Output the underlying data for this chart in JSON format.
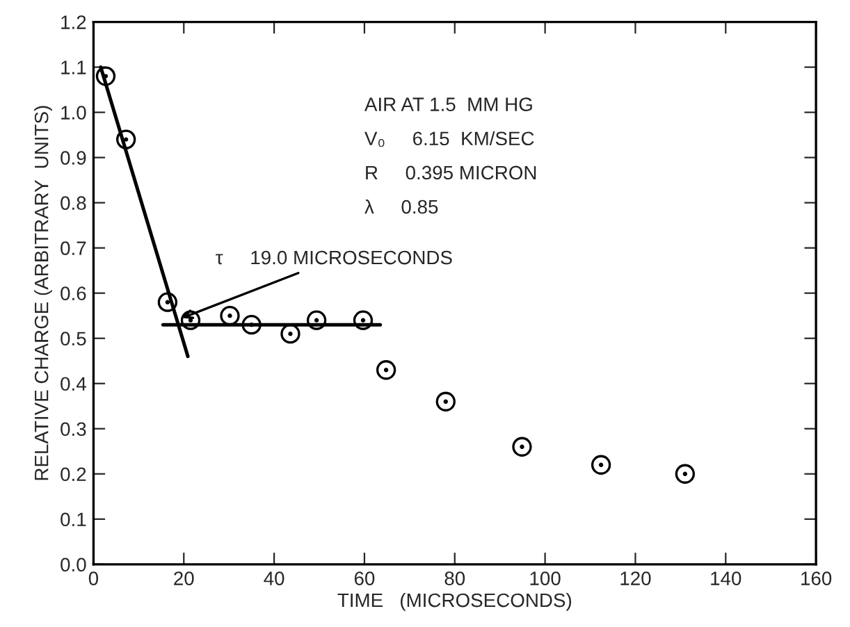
{
  "chart_data": {
    "type": "scatter",
    "xlabel": "TIME   (MICROSECONDS)",
    "ylabel": "RELATIVE CHARGE (ARBITRARY  UNITS)",
    "series": [
      {
        "color": "#000000",
        "marker": "circle",
        "x": [
          2.7,
          7.2,
          16.4,
          21.5,
          30.2,
          35,
          43.6,
          49.4,
          59.7,
          64.8,
          78,
          94.9,
          112.4,
          131
        ],
        "values": [
          1.08,
          0.94,
          0.58,
          0.54,
          0.55,
          0.53,
          0.51,
          0.54,
          0.54,
          0.43,
          0.36,
          0.26,
          0.22,
          0.2
        ]
      },
      {
        "type": "line",
        "marker": "none",
        "color": "#000000",
        "x": [
          1.6,
          20.9
        ],
        "values": [
          1.1,
          0.46
        ]
      },
      {
        "type": "line",
        "marker": "none",
        "color": "#000000",
        "x": [
          15.4,
          63.5
        ],
        "values": [
          0.53,
          0.53
        ]
      }
    ],
    "line_style": "solid",
    "xlim": [
      0,
      160
    ],
    "xticks": [
      0,
      20,
      40,
      60,
      80,
      100,
      120,
      140,
      160
    ],
    "ylim": [
      0,
      1.2
    ],
    "yticks": [
      {
        "value": 0,
        "label": "0.0"
      },
      {
        "value": 0.1,
        "label": "0.1"
      },
      {
        "value": 0.2,
        "label": "0.2"
      },
      {
        "value": 0.3,
        "label": "0.3"
      },
      {
        "value": 0.4,
        "label": "0.4"
      },
      {
        "value": 0.5,
        "label": "0.5"
      },
      {
        "value": 0.6,
        "label": "0.6"
      },
      {
        "value": 0.7,
        "label": "0.7"
      },
      {
        "value": 0.8,
        "label": "0.8"
      },
      {
        "value": 0.9,
        "label": "0.9"
      },
      {
        "value": 1.0,
        "label": "1.0"
      },
      {
        "value": 1.1,
        "label": "1.1"
      },
      {
        "value": 1.2,
        "label": "1.2"
      }
    ],
    "annotations": [
      {
        "text": "τ     19.0 MICROSECONDS",
        "x": 19.6,
        "y": 0.545
      },
      "AIR AT 1.5  MM HG",
      "V₀     6.15  KM/SEC",
      "R     0.395 MICRON",
      "λ     0.85"
    ]
  }
}
